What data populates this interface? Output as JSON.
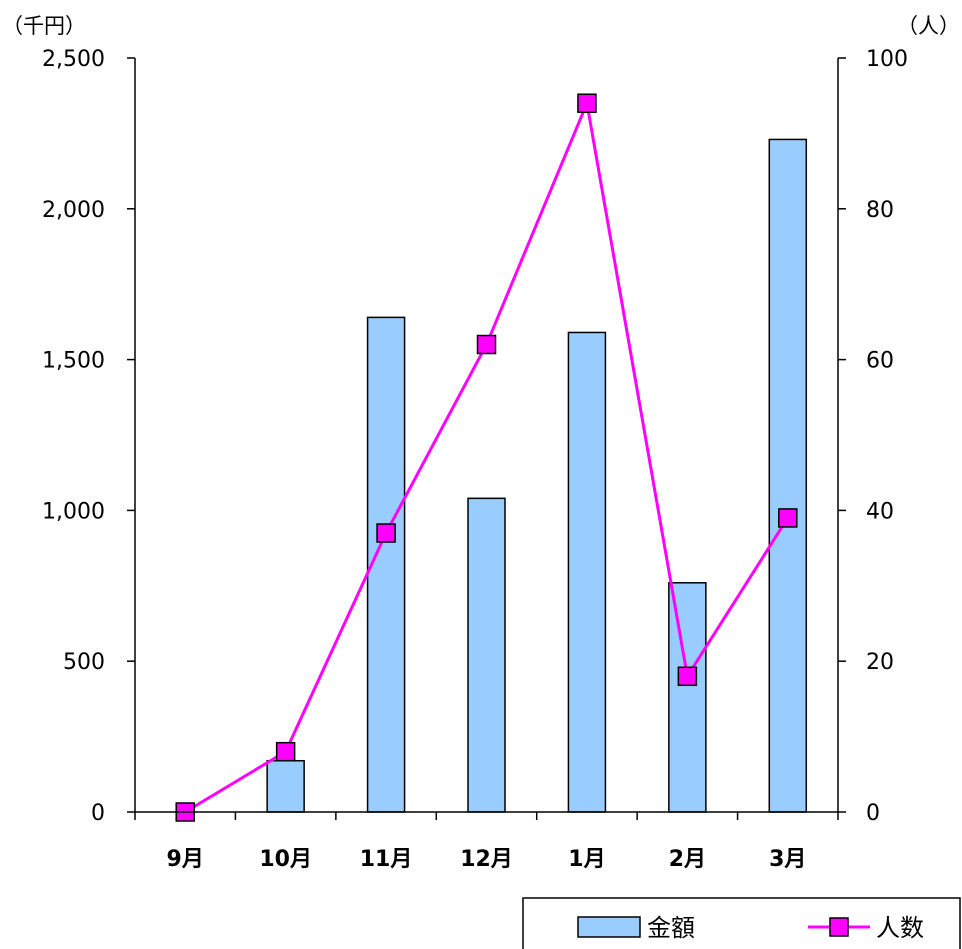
{
  "chart_data": {
    "type": "bar",
    "categories": [
      "9月",
      "10月",
      "11月",
      "12月",
      "1月",
      "2月",
      "3月"
    ],
    "series": [
      {
        "name": "金額",
        "type": "bar",
        "axis": "left",
        "values": [
          0,
          170,
          1640,
          1040,
          1590,
          760,
          2230
        ]
      },
      {
        "name": "人数",
        "type": "line",
        "axis": "right",
        "values": [
          0,
          8,
          37,
          62,
          94,
          18,
          39
        ]
      }
    ],
    "left_axis": {
      "unit": "（千円）",
      "ylim": [
        0,
        2500
      ],
      "ticks": [
        "0",
        "500",
        "1,000",
        "1,500",
        "2,000",
        "2,500"
      ]
    },
    "right_axis": {
      "unit": "（人）",
      "ylim": [
        0,
        100
      ],
      "ticks": [
        "0",
        "20",
        "40",
        "60",
        "80",
        "100"
      ]
    },
    "grid": false,
    "legend_position": "bottom-right",
    "colors": {
      "bar_fill": "#99ccff",
      "bar_stroke": "#000000",
      "line": "#ff00ff",
      "marker_fill": "#ff00ff",
      "marker_stroke": "#000000"
    }
  }
}
